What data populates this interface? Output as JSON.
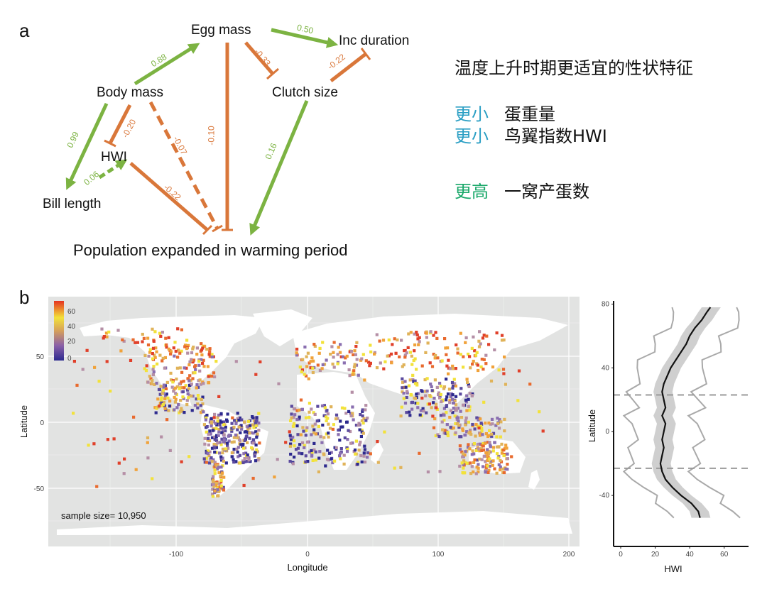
{
  "panel_a": {
    "letter": "a",
    "nodes": {
      "egg_mass": "Egg mass",
      "inc_duration": "Inc duration",
      "body_mass": "Body mass",
      "clutch_size": "Clutch size",
      "hwi": "HWI",
      "bill_length": "Bill length",
      "target": "Population expanded in warming period"
    },
    "paths": [
      {
        "from": "Body mass",
        "to": "Egg mass",
        "coef": "0.88",
        "sign": "positive"
      },
      {
        "from": "Egg mass",
        "to": "Inc duration",
        "coef": "0.50",
        "sign": "positive"
      },
      {
        "from": "Egg mass",
        "to": "Clutch size",
        "coef": "-0.33",
        "sign": "negative"
      },
      {
        "from": "Inc duration",
        "to": "Clutch size",
        "coef": "-0.22",
        "sign": "negative"
      },
      {
        "from": "Body mass",
        "to": "Bill length",
        "coef": "0.99",
        "sign": "positive"
      },
      {
        "from": "Body mass",
        "to": "HWI",
        "coef": "-0.20",
        "sign": "negative"
      },
      {
        "from": "Bill length",
        "to": "HWI",
        "coef": "0.06",
        "sign": "positive"
      },
      {
        "from": "Body mass",
        "to": "Population expanded in warming period",
        "coef": "-0.07",
        "sign": "negative"
      },
      {
        "from": "Egg mass",
        "to": "Population expanded in warming period",
        "coef": "-0.10",
        "sign": "negative"
      },
      {
        "from": "HWI",
        "to": "Population expanded in warming period",
        "coef": "-0.22",
        "sign": "negative"
      },
      {
        "from": "Clutch size",
        "to": "Population expanded in warming period",
        "coef": "0.16",
        "sign": "positive"
      }
    ],
    "colors": {
      "positive": "#7cb342",
      "negative": "#d9773a"
    }
  },
  "summary": {
    "title": "温度上升时期更适宜的性状特征",
    "rows": [
      {
        "qualifier": "更小",
        "trait": "蛋重量",
        "color": "#2b9fc4"
      },
      {
        "qualifier": "更小",
        "trait": "鸟翼指数HWI",
        "color": "#2b9fc4"
      },
      {
        "qualifier": "更高",
        "trait": "一窝产蛋数",
        "color": "#1aa86a"
      }
    ]
  },
  "panel_b": {
    "letter": "b",
    "map": {
      "sample_size_text": "sample size= 10,950",
      "xlabel": "Longitude",
      "ylabel": "Latitude",
      "x_ticks": [
        "-100",
        "0",
        "100",
        "200"
      ],
      "y_ticks": [
        "50",
        "0",
        "-50"
      ],
      "legend_ticks": [
        "60",
        "40",
        "20",
        "0"
      ],
      "colors": {
        "ocean": "#e2e3e2",
        "land": "#ffffff",
        "grid": "#ffffff"
      }
    },
    "chart_data": {
      "type": "line",
      "xlabel": "HWI",
      "ylabel": "Latitude",
      "xlim": [
        0,
        70
      ],
      "ylim": [
        -72,
        82
      ],
      "x_ticks": [
        "0",
        "20",
        "40",
        "60"
      ],
      "y_ticks": [
        "80",
        "40",
        "0",
        "-40"
      ],
      "dashed_lines_at_latitude": [
        23,
        -23
      ],
      "series": [
        {
          "name": "",
          "latitude": [
            78,
            75,
            70,
            65,
            60,
            55,
            50,
            45,
            40,
            35,
            30,
            25,
            20,
            15,
            10,
            5,
            0,
            -5,
            -10,
            -15,
            -20,
            -25,
            -30,
            -35,
            -40,
            -45,
            -50,
            -54
          ],
          "values": [
            52,
            50,
            47,
            43,
            40,
            38,
            35,
            32,
            29,
            27,
            25,
            24,
            25,
            26,
            24,
            26,
            25,
            24,
            25,
            24,
            23,
            24,
            26,
            30,
            35,
            41,
            45,
            46
          ]
        }
      ]
    }
  }
}
